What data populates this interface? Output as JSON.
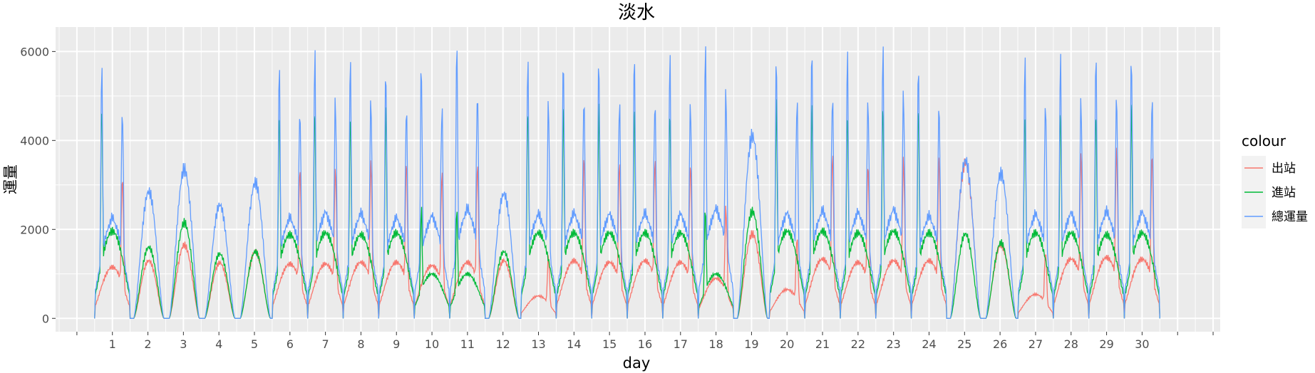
{
  "chart_data": {
    "type": "line",
    "title": "淡水",
    "xlabel": "day",
    "ylabel": "運量",
    "x_ticks": [
      "1",
      "2",
      "3",
      "4",
      "5",
      "6",
      "7",
      "8",
      "9",
      "10",
      "11",
      "12",
      "13",
      "14",
      "15",
      "16",
      "17",
      "18",
      "19",
      "20",
      "21",
      "22",
      "23",
      "24",
      "25",
      "26",
      "27",
      "28",
      "29",
      "30"
    ],
    "y_ticks": [
      0,
      2000,
      4000,
      6000
    ],
    "xlim": [
      -0.6,
      32.2
    ],
    "ylim": [
      -300,
      6550
    ],
    "grid": true,
    "legend": {
      "title": "colour",
      "position": "right",
      "entries": [
        "出站",
        "進站",
        "總運量"
      ]
    },
    "series": [
      {
        "name": "出站",
        "color": "#F8766D",
        "daily_peak": [
          3200,
          1300,
          1650,
          1250,
          1500,
          3400,
          3400,
          3500,
          3500,
          3300,
          3500,
          1300,
          1400,
          3600,
          3500,
          3600,
          3500,
          2500,
          1900,
          1800,
          3700,
          3500,
          3600,
          3600,
          3500,
          1650,
          1500,
          3700,
          3800,
          3700
        ]
      },
      {
        "name": "進站",
        "color": "#00BA38",
        "daily_peak": [
          4900,
          1600,
          2150,
          1450,
          1500,
          4700,
          4800,
          4700,
          4800,
          2500,
          2500,
          1500,
          4800,
          4800,
          4800,
          4800,
          4800,
          2500,
          2400,
          4900,
          4900,
          4800,
          4900,
          4800,
          1900,
          1700,
          4800,
          4800,
          4700,
          4800
        ]
      },
      {
        "name": "總運量",
        "color": "#619CFF",
        "daily_peak": [
          5700,
          2850,
          3350,
          2550,
          3050,
          5700,
          6000,
          5950,
          5700,
          5800,
          6200,
          2800,
          5900,
          5950,
          5900,
          5950,
          5900,
          6200,
          4100,
          5950,
          6100,
          6000,
          6150,
          5800,
          3550,
          3250,
          5900,
          5950,
          6050,
          6000
        ]
      }
    ]
  }
}
